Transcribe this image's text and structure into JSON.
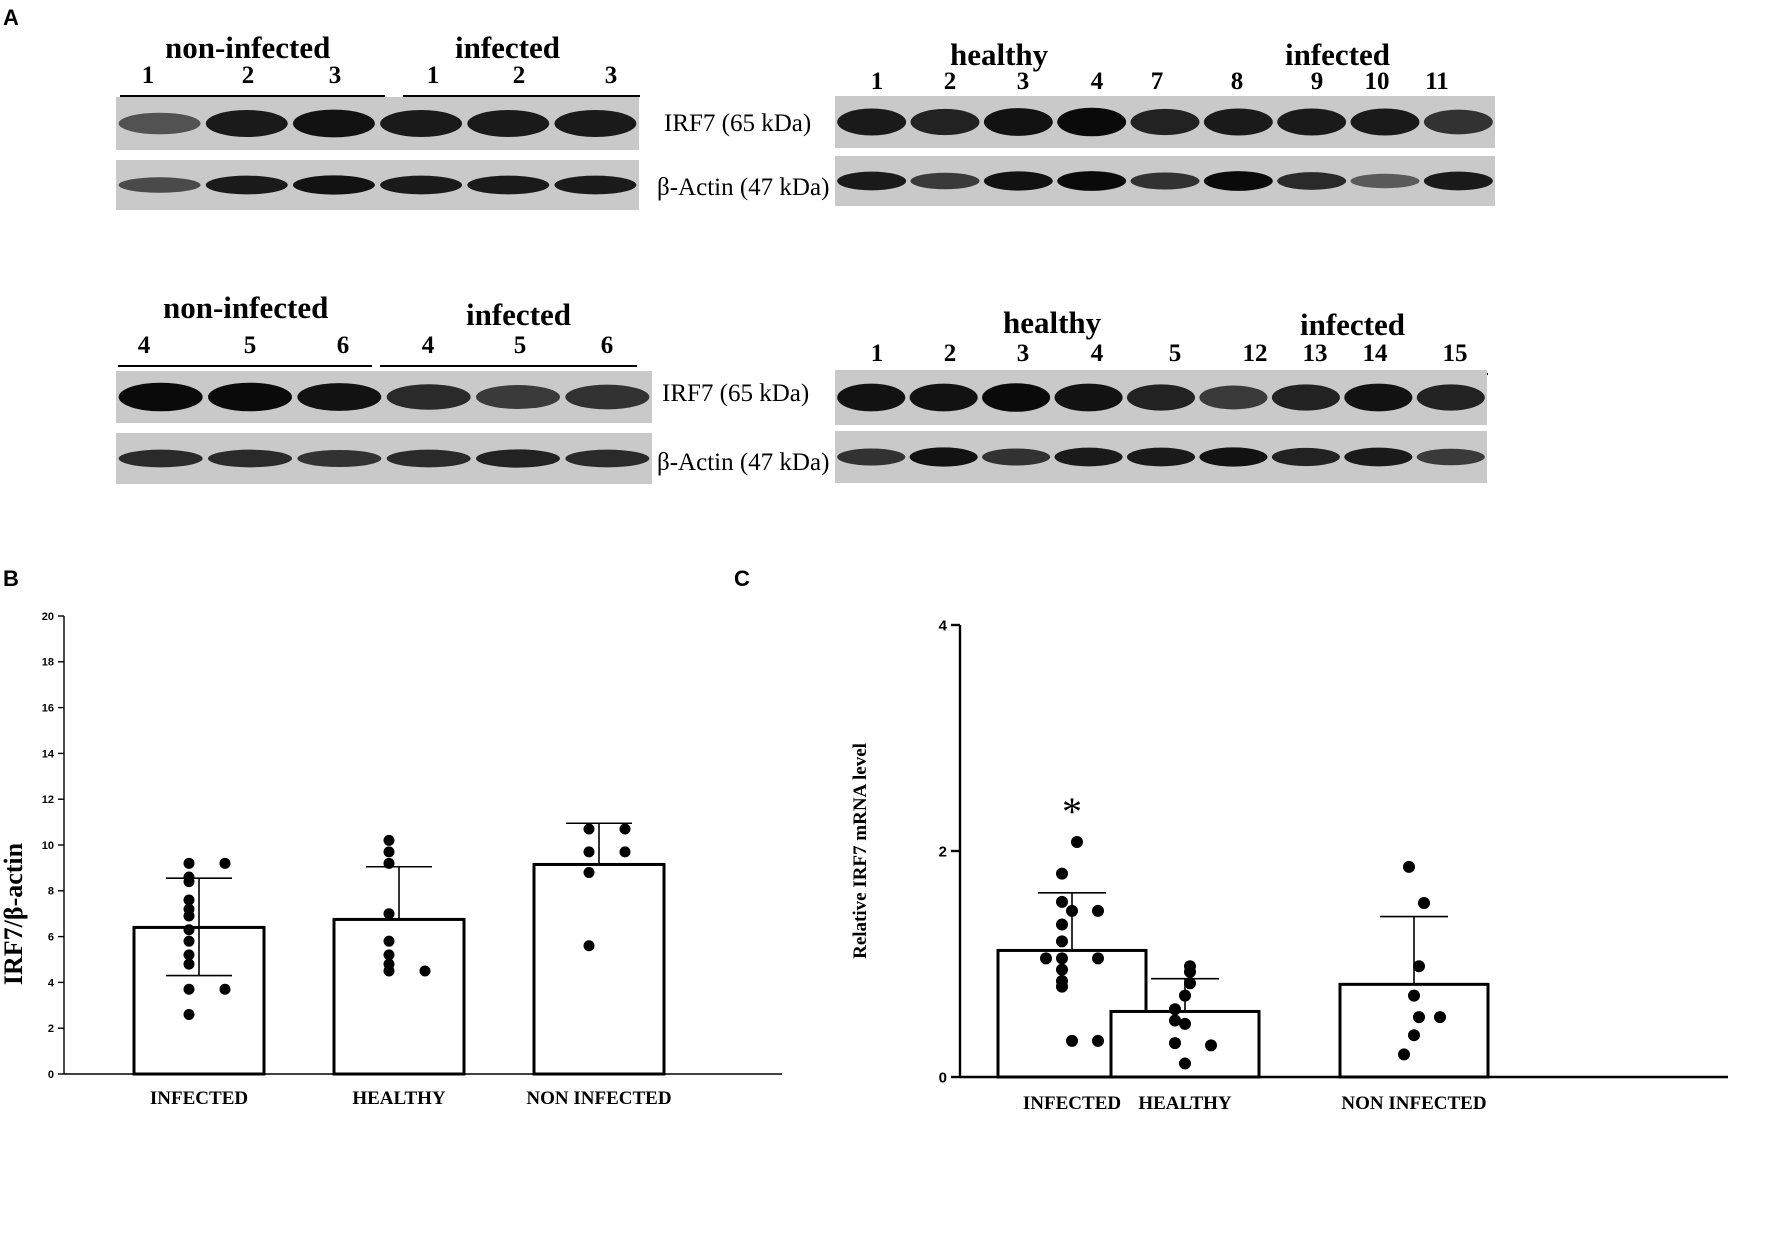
{
  "panels": {
    "a": "A",
    "b": "B",
    "c": "C"
  },
  "marker_labels": {
    "irf7": "IRF7 (65 kDa)",
    "actin": "β-Actin (47 kDa)"
  },
  "blots": [
    {
      "id": "blot1",
      "groups": [
        {
          "label": "non-infected",
          "lanes": [
            "1",
            "2",
            "3"
          ]
        },
        {
          "label": "infected",
          "lanes": [
            "1",
            "2",
            "3"
          ]
        }
      ],
      "irf7_intensity": [
        0.55,
        0.9,
        0.95,
        0.9,
        0.9,
        0.9
      ],
      "actin_intensity": [
        0.6,
        0.9,
        0.95,
        0.9,
        0.9,
        0.9
      ]
    },
    {
      "id": "blot2",
      "groups": [
        {
          "label": "healthy",
          "lanes": [
            "1",
            "2",
            "3",
            "4"
          ]
        },
        {
          "label": "infected",
          "lanes": [
            "7",
            "8",
            "9",
            "10",
            "11"
          ]
        }
      ],
      "irf7_intensity": [
        0.9,
        0.85,
        0.95,
        1.0,
        0.85,
        0.9,
        0.9,
        0.9,
        0.75
      ],
      "actin_intensity": [
        0.9,
        0.7,
        0.95,
        1.0,
        0.75,
        1.0,
        0.8,
        0.5,
        0.9
      ]
    },
    {
      "id": "blot3",
      "groups": [
        {
          "label": "non-infected",
          "lanes": [
            "4",
            "5",
            "6"
          ]
        },
        {
          "label": "infected",
          "lanes": [
            "4",
            "5",
            "6"
          ]
        }
      ],
      "irf7_intensity": [
        1.0,
        1.0,
        0.95,
        0.8,
        0.7,
        0.75
      ],
      "actin_intensity": [
        0.8,
        0.8,
        0.75,
        0.8,
        0.85,
        0.8
      ]
    },
    {
      "id": "blot4",
      "groups": [
        {
          "label": "healthy",
          "lanes": [
            "1",
            "2",
            "3",
            "4",
            "5"
          ]
        },
        {
          "label": "infected",
          "lanes": [
            "12",
            "13",
            "14",
            "15"
          ]
        }
      ],
      "irf7_intensity": [
        0.95,
        0.95,
        1.0,
        0.95,
        0.85,
        0.7,
        0.85,
        0.95,
        0.85
      ],
      "actin_intensity": [
        0.75,
        0.95,
        0.75,
        0.9,
        0.9,
        0.95,
        0.85,
        0.9,
        0.7
      ]
    }
  ],
  "chart_data": [
    {
      "id": "B",
      "type": "bar",
      "categories": [
        "INFECTED",
        "HEALTHY",
        "NON INFECTED"
      ],
      "values": [
        6.4,
        6.75,
        9.15
      ],
      "error_upper": [
        8.55,
        9.05,
        10.95
      ],
      "error_lower": [
        4.3,
        null,
        null
      ],
      "points": [
        [
          9.2,
          9.2,
          8.6,
          8.4,
          7.6,
          7.2,
          6.9,
          6.3,
          5.8,
          5.2,
          4.8,
          3.7,
          3.7,
          2.6
        ],
        [
          10.2,
          9.7,
          9.2,
          7.0,
          5.8,
          5.2,
          4.8,
          4.5,
          4.5
        ],
        [
          10.7,
          10.7,
          9.7,
          9.7,
          8.8,
          5.6
        ]
      ],
      "ylabel": "IRF7/β-actin",
      "ylim": [
        0,
        20
      ],
      "yticks": [
        "0",
        "2",
        "4",
        "6",
        "8",
        "10",
        "12",
        "14",
        "16",
        "18",
        "20"
      ]
    },
    {
      "id": "C",
      "type": "bar",
      "categories": [
        "INFECTED",
        "HEALTHY",
        "NON INFECTED"
      ],
      "values": [
        1.12,
        0.58,
        0.82
      ],
      "error_upper": [
        1.63,
        0.87,
        1.42
      ],
      "error_lower": [
        null,
        null,
        null
      ],
      "points": [
        [
          2.08,
          1.8,
          1.55,
          1.47,
          1.47,
          1.35,
          1.2,
          1.05,
          1.05,
          1.05,
          0.95,
          0.85,
          0.8,
          0.32,
          0.32
        ],
        [
          0.98,
          0.93,
          0.83,
          0.72,
          0.6,
          0.5,
          0.47,
          0.3,
          0.28,
          0.12
        ],
        [
          1.86,
          1.54,
          0.98,
          0.72,
          0.53,
          0.53,
          0.37,
          0.2
        ]
      ],
      "ylabel": "Relative IRF7 mRNA level",
      "ylim": [
        0,
        4
      ],
      "yticks": [
        "0",
        "2",
        "4"
      ],
      "annotation": "*"
    }
  ]
}
